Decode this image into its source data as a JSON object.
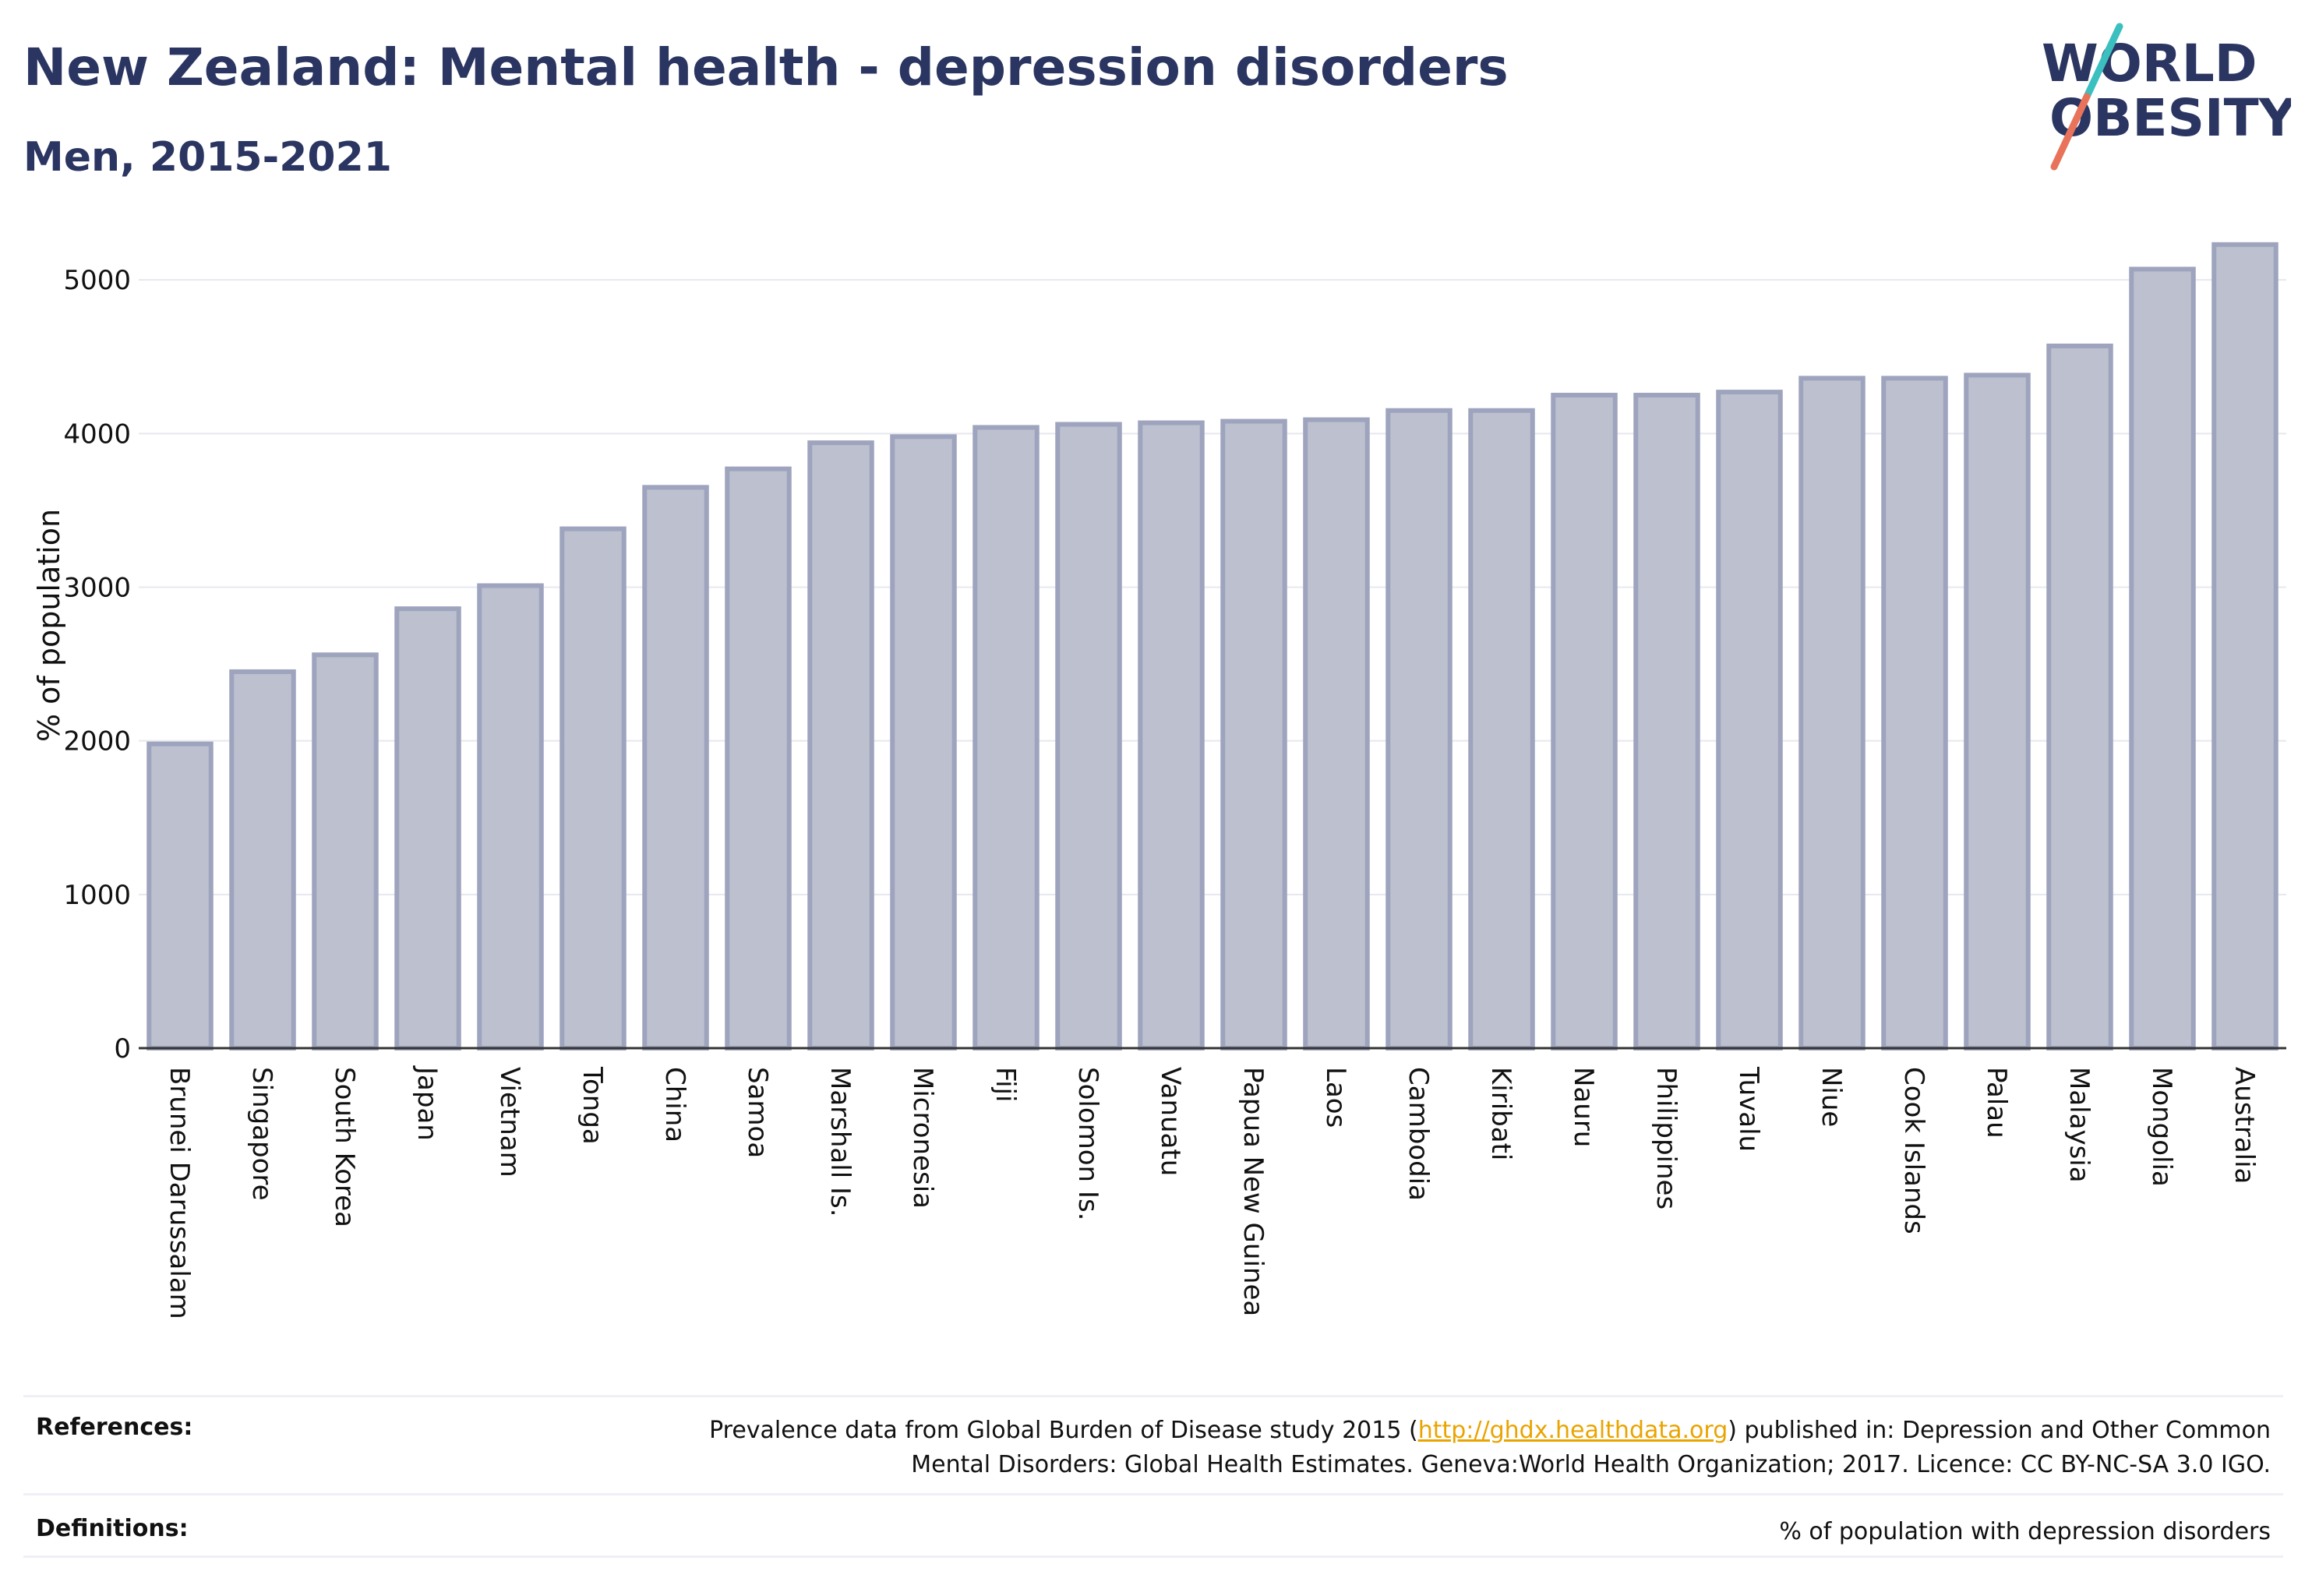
{
  "header": {
    "title": "New Zealand: Mental health - depression disorders",
    "subtitle": "Men, 2015-2021"
  },
  "logo": {
    "line1": "WORLD",
    "line2": "OBESITY",
    "colors": {
      "text": "#2b3561",
      "slash_top": "#3bbfbf",
      "slash_bottom": "#e8735a"
    }
  },
  "chart_data": {
    "type": "bar",
    "ylabel": "% of population",
    "xlabel": "",
    "ylim": [
      0,
      5300
    ],
    "yticks": [
      0,
      1000,
      2000,
      3000,
      4000,
      5000
    ],
    "grid": true,
    "categories": [
      "Brunei Darussalam",
      "Singapore",
      "South Korea",
      "Japan",
      "Vietnam",
      "Tonga",
      "China",
      "Samoa",
      "Marshall Is.",
      "Micronesia",
      "Fiji",
      "Solomon Is.",
      "Vanuatu",
      "Papua New Guinea",
      "Laos",
      "Cambodia",
      "Kiribati",
      "Nauru",
      "Philippines",
      "Tuvalu",
      "Niue",
      "Cook Islands",
      "Palau",
      "Malaysia",
      "Mongolia",
      "Australia"
    ],
    "values": [
      1980,
      2450,
      2560,
      2860,
      3010,
      3380,
      3650,
      3770,
      3940,
      3980,
      4040,
      4060,
      4070,
      4080,
      4090,
      4150,
      4150,
      4250,
      4250,
      4270,
      4360,
      4360,
      4380,
      4570,
      5070,
      5230
    ],
    "bar_fill": "#bcc0cf",
    "bar_stroke": "#9ea4bd"
  },
  "footer": {
    "references_label": "References:",
    "references_line1_pre": "Prevalence data from Global Burden of Disease study 2015 (",
    "references_link": "http://ghdx.healthdata.org",
    "references_line1_post": ") published in: Depression and Other Common",
    "references_line2": "Mental Disorders: Global Health Estimates. Geneva:World Health Organization; 2017. Licence: CC BY-NC-SA 3.0 IGO.",
    "definitions_label": "Definitions:",
    "definitions_text": "% of population with depression disorders"
  }
}
